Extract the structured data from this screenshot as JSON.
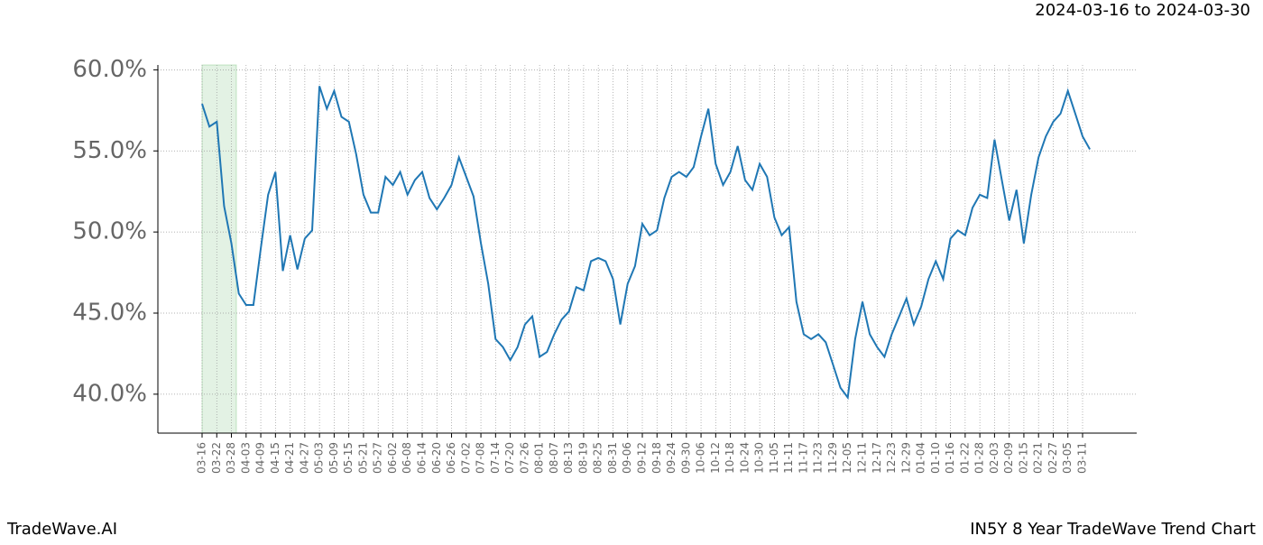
{
  "header": {
    "title": "2024-03-16 to 2024-03-30"
  },
  "footer": {
    "left": "TradeWave.AI",
    "right": "IN5Y 8 Year TradeWave Trend Chart"
  },
  "chart_data": {
    "type": "line",
    "color": "#1f77b4",
    "grid": true,
    "categories": [
      "03-16",
      null,
      "03-22",
      null,
      "03-28",
      null,
      "04-03",
      null,
      "04-09",
      null,
      "04-15",
      null,
      "04-21",
      null,
      "04-27",
      null,
      "05-03",
      null,
      "05-09",
      null,
      "05-15",
      null,
      "05-21",
      null,
      "05-27",
      null,
      "06-02",
      null,
      "06-08",
      null,
      "06-14",
      null,
      "06-20",
      null,
      "06-26",
      null,
      "07-02",
      null,
      "07-08",
      null,
      "07-14",
      null,
      "07-20",
      null,
      "07-26",
      null,
      "08-01",
      null,
      "08-07",
      null,
      "08-13",
      null,
      "08-19",
      null,
      "08-25",
      null,
      "08-31",
      null,
      "09-06",
      null,
      "09-12",
      null,
      "09-18",
      null,
      "09-24",
      null,
      "09-30",
      null,
      "10-06",
      null,
      "10-12",
      null,
      "10-18",
      null,
      "10-24",
      null,
      "10-30",
      null,
      "11-05",
      null,
      "11-11",
      null,
      "11-17",
      null,
      "11-23",
      null,
      "11-29",
      null,
      "12-05",
      null,
      "12-11",
      null,
      "12-17",
      null,
      "12-23",
      null,
      "12-29",
      null,
      "01-04",
      null,
      "01-10",
      null,
      "01-16",
      null,
      "01-22",
      null,
      "01-28",
      null,
      "02-03",
      null,
      "02-09",
      null,
      "02-15",
      null,
      "02-21",
      null,
      "02-27",
      null,
      "03-05",
      null,
      "03-11",
      null
    ],
    "values": [
      57.9,
      56.5,
      56.8,
      51.6,
      49.3,
      46.2,
      45.5,
      45.5,
      49.0,
      52.3,
      53.7,
      47.6,
      49.8,
      47.7,
      49.6,
      50.1,
      59.0,
      57.6,
      58.7,
      57.1,
      56.8,
      54.8,
      52.3,
      51.2,
      51.2,
      53.4,
      52.9,
      53.7,
      52.3,
      53.2,
      53.7,
      52.1,
      51.4,
      52.1,
      52.9,
      54.6,
      53.4,
      52.2,
      49.3,
      46.8,
      43.4,
      42.9,
      42.1,
      42.9,
      44.3,
      44.8,
      42.3,
      42.6,
      43.7,
      44.6,
      45.1,
      46.6,
      46.4,
      48.2,
      48.4,
      48.2,
      47.1,
      44.3,
      46.8,
      47.9,
      50.5,
      49.8,
      50.1,
      52.1,
      53.4,
      53.7,
      53.4,
      54.0,
      55.9,
      57.6,
      54.2,
      52.9,
      53.7,
      55.3,
      53.2,
      52.6,
      54.2,
      53.4,
      50.9,
      49.8,
      50.3,
      45.7,
      43.7,
      43.4,
      43.7,
      43.2,
      41.8,
      40.4,
      39.8,
      43.4,
      45.7,
      43.7,
      42.9,
      42.3,
      43.7,
      44.8,
      45.9,
      44.3,
      45.4,
      47.1,
      48.2,
      47.1,
      49.6,
      50.1,
      49.8,
      51.5,
      52.3,
      52.1,
      55.7,
      53.2,
      50.7,
      52.6,
      49.3,
      52.3,
      54.6,
      55.9,
      56.8,
      57.3,
      58.7,
      57.3,
      55.9,
      55.1
    ],
    "ylim": [
      37.6,
      60.3
    ],
    "yticks": [
      {
        "value": 40,
        "label": "40.0%"
      },
      {
        "value": 45,
        "label": "45.0%"
      },
      {
        "value": 50,
        "label": "50.0%"
      },
      {
        "value": 55,
        "label": "55.0%"
      },
      {
        "value": 60,
        "label": "60.0%"
      }
    ]
  }
}
